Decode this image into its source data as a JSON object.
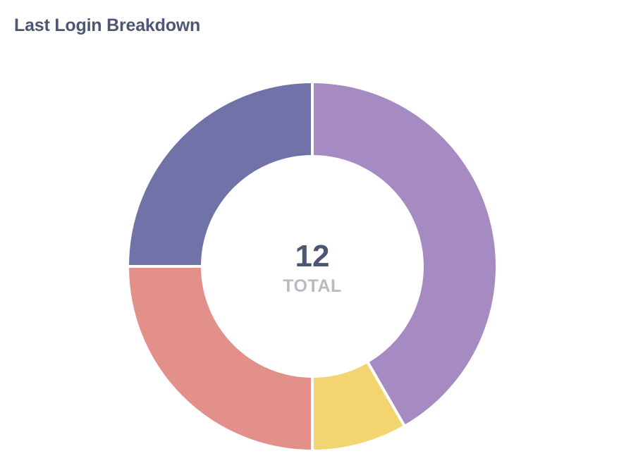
{
  "card": {
    "title": "Last Login Breakdown"
  },
  "chart_data": {
    "type": "pie",
    "variant": "donut",
    "title": "Last Login Breakdown",
    "total_value": "12",
    "total_label": "TOTAL",
    "slices": [
      {
        "value": 5,
        "color": "#a68ac2"
      },
      {
        "value": 1,
        "color": "#f2d570"
      },
      {
        "value": 3,
        "color": "#e3908b"
      },
      {
        "value": 3,
        "color": "#7172a8"
      }
    ],
    "legend": "none"
  }
}
